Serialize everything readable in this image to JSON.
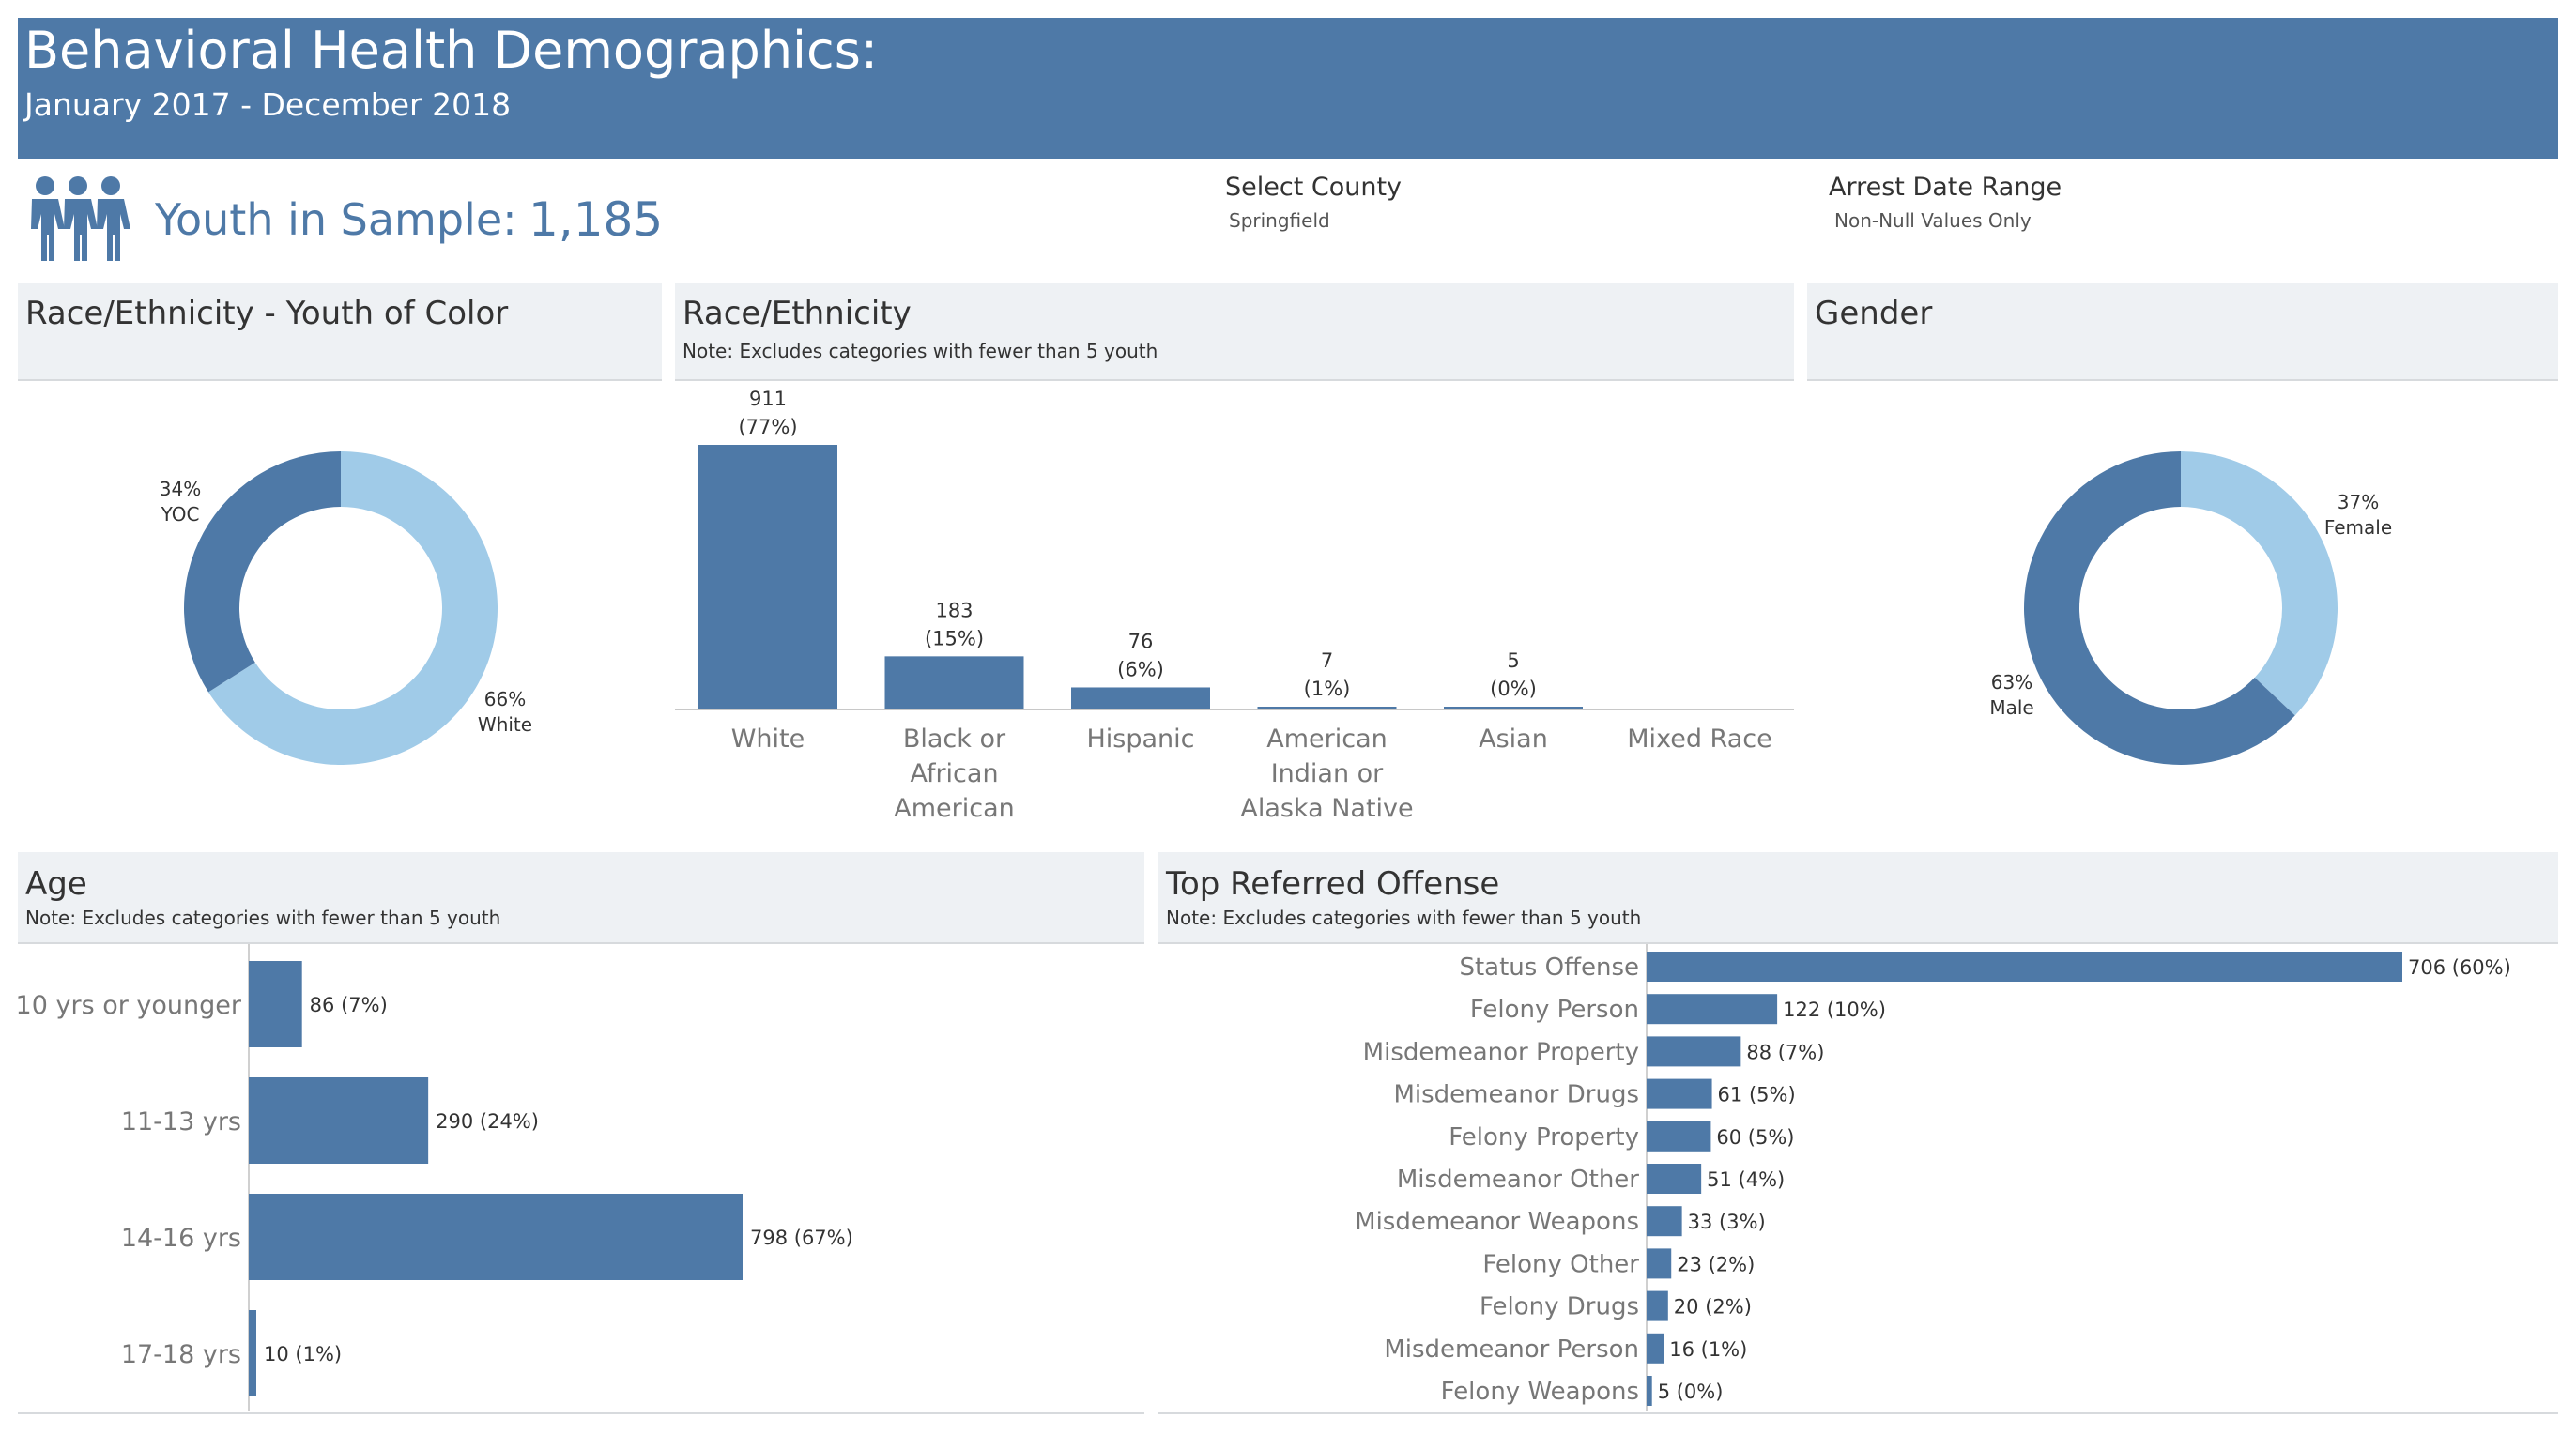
{
  "header": {
    "title": "Behavioral Health Demographics:",
    "subtitle": "January 2017 - December 2018"
  },
  "kpi": {
    "icon": "people-group-icon",
    "label": "Youth in Sample:",
    "value": "1,185"
  },
  "filters": {
    "county": {
      "label": "Select County",
      "value": "Springfield"
    },
    "date_range": {
      "label": "Arrest Date Range",
      "value": "Non-Null Values Only"
    }
  },
  "colors": {
    "header_bg": "#4e79a7",
    "bar": "#4e79a7",
    "light": "#a0cbe8",
    "panel_bg": "#eef1f4",
    "axis_text": "#777777"
  },
  "panels": {
    "yoc": {
      "title": "Race/Ethnicity - Youth of Color"
    },
    "race": {
      "title": "Race/Ethnicity",
      "note": "Note: Excludes categories with fewer than 5 youth"
    },
    "gender": {
      "title": "Gender"
    },
    "age": {
      "title": "Age",
      "note": "Note: Excludes categories with fewer than 5 youth"
    },
    "offense": {
      "title": "Top Referred Offense",
      "note": "Note: Excludes categories with fewer than 5 youth"
    }
  },
  "chart_data": [
    {
      "id": "yoc",
      "type": "pie",
      "slices": [
        {
          "name": "YOC",
          "pct_label": "34%",
          "value": 34,
          "color": "#4e79a7"
        },
        {
          "name": "White",
          "pct_label": "66%",
          "value": 66,
          "color": "#a0cbe8"
        }
      ]
    },
    {
      "id": "race",
      "type": "bar",
      "categories": [
        [
          "White"
        ],
        [
          "Black or",
          "African",
          "American"
        ],
        [
          "Hispanic"
        ],
        [
          "American",
          "Indian or",
          "Alaska Native"
        ],
        [
          "Asian"
        ],
        [
          "Mixed Race"
        ]
      ],
      "values": [
        911,
        183,
        76,
        7,
        5,
        null
      ],
      "value_labels": [
        "911",
        "183",
        "76",
        "7",
        "5",
        ""
      ],
      "pct_labels": [
        "(77%)",
        "(15%)",
        "(6%)",
        "(1%)",
        "(0%)",
        ""
      ]
    },
    {
      "id": "gender",
      "type": "pie",
      "slices": [
        {
          "name": "Female",
          "pct_label": "37%",
          "value": 37,
          "color": "#a0cbe8"
        },
        {
          "name": "Male",
          "pct_label": "63%",
          "value": 63,
          "color": "#4e79a7"
        }
      ]
    },
    {
      "id": "age",
      "type": "bar",
      "orientation": "horizontal",
      "categories": [
        "10 yrs or younger",
        "11-13 yrs",
        "14-16 yrs",
        "17-18 yrs"
      ],
      "values": [
        86,
        290,
        798,
        10
      ],
      "labels": [
        "86 (7%)",
        "290 (24%)",
        "798 (67%)",
        "10 (1%)"
      ]
    },
    {
      "id": "offense",
      "type": "bar",
      "orientation": "horizontal",
      "categories": [
        "Status Offense",
        "Felony Person",
        "Misdemeanor Property",
        "Misdemeanor Drugs",
        "Felony Property",
        "Misdemeanor Other",
        "Misdemeanor Weapons",
        "Felony Other",
        "Felony Drugs",
        "Misdemeanor Person",
        "Felony Weapons"
      ],
      "values": [
        706,
        122,
        88,
        61,
        60,
        51,
        33,
        23,
        20,
        16,
        5
      ],
      "labels": [
        "706 (60%)",
        "122 (10%)",
        "88 (7%)",
        "61 (5%)",
        "60 (5%)",
        "51 (4%)",
        "33 (3%)",
        "23 (2%)",
        "20 (2%)",
        "16 (1%)",
        "5 (0%)"
      ]
    }
  ]
}
